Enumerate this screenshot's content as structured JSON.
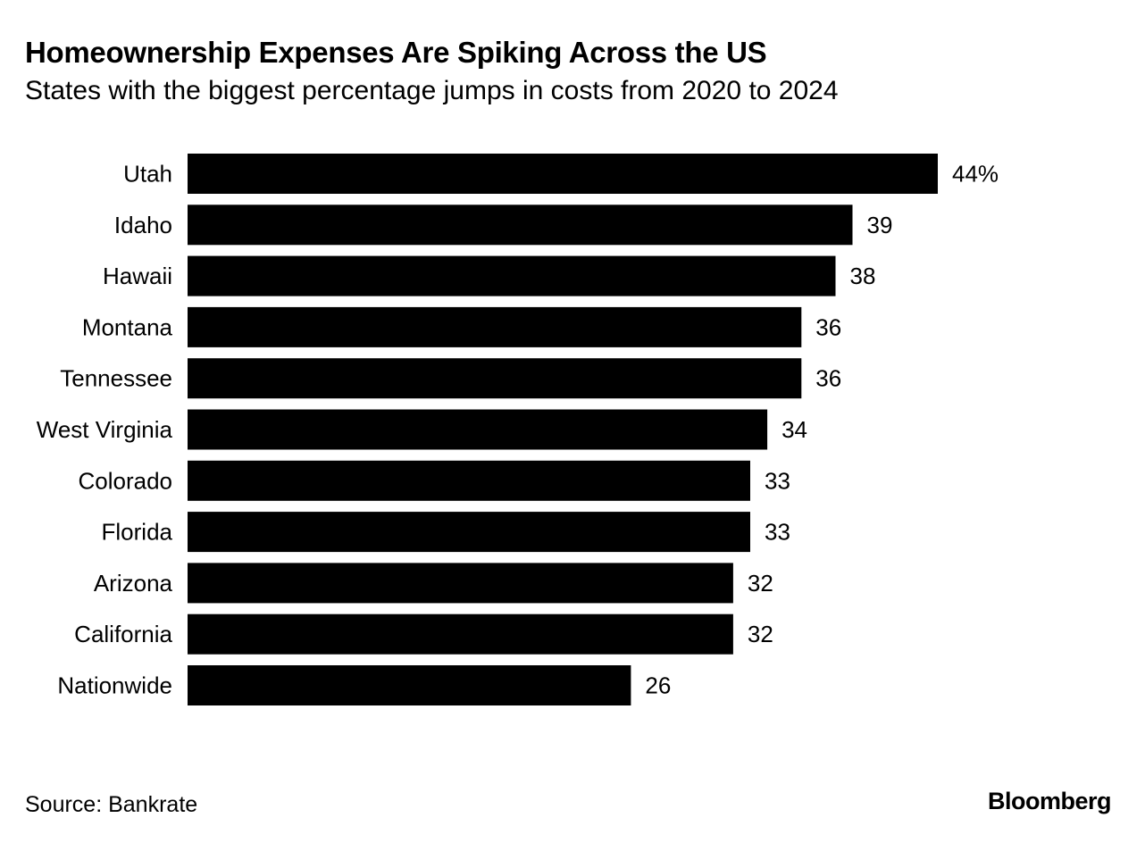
{
  "header": {
    "title": "Homeownership Expenses Are Spiking Across the US",
    "subtitle": "States with the biggest percentage jumps in costs from 2020 to 2024"
  },
  "footer": {
    "source": "Source: Bankrate",
    "brand": "Bloomberg"
  },
  "colors": {
    "bar": "#000000",
    "text": "#000000",
    "background": "#ffffff"
  },
  "chart_data": {
    "type": "bar",
    "orientation": "horizontal",
    "title": "Homeownership Expenses Are Spiking Across the US",
    "subtitle": "States with the biggest percentage jumps in costs from 2020 to 2024",
    "categories": [
      "Utah",
      "Idaho",
      "Hawaii",
      "Montana",
      "Tennessee",
      "West Virginia",
      "Colorado",
      "Florida",
      "Arizona",
      "California",
      "Nationwide"
    ],
    "values": [
      44,
      39,
      38,
      36,
      36,
      34,
      33,
      33,
      32,
      32,
      26
    ],
    "value_labels": [
      "44%",
      "39",
      "38",
      "36",
      "36",
      "34",
      "33",
      "33",
      "32",
      "32",
      "26"
    ],
    "unit": "%",
    "xlim": [
      0,
      44
    ],
    "grid": false,
    "legend": "none",
    "source": "Source: Bankrate"
  }
}
